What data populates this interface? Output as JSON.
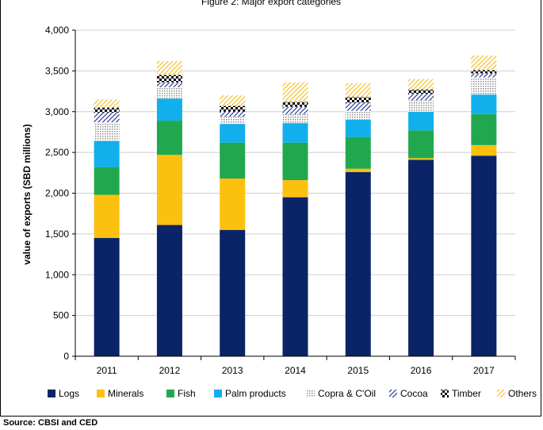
{
  "chart_data": {
    "type": "bar",
    "stacked": true,
    "title_partial": "Figure 2: Major export categories",
    "ylabel": "value of exports (SBD millions)",
    "xlabel": "",
    "categories": [
      "2011",
      "2012",
      "2013",
      "2014",
      "2015",
      "2016",
      "2017"
    ],
    "ylim": [
      0,
      4000
    ],
    "yticks": [
      0,
      500,
      1000,
      1500,
      2000,
      2500,
      3000,
      3500,
      4000
    ],
    "ytick_labels": [
      "0",
      "500",
      "1,000",
      "1,500",
      "2,000",
      "2,500",
      "3,000",
      "3,500",
      "4,000"
    ],
    "grid": "horizontal",
    "legend_position": "bottom",
    "series": [
      {
        "name": "Logs",
        "color": "#0b2467",
        "pattern": "solid",
        "values": [
          1450,
          1610,
          1550,
          1950,
          2260,
          2410,
          2460
        ]
      },
      {
        "name": "Minerals",
        "color": "#fcc00f",
        "pattern": "solid",
        "values": [
          530,
          860,
          630,
          210,
          40,
          20,
          130
        ]
      },
      {
        "name": "Fish",
        "color": "#21a84f",
        "pattern": "solid",
        "values": [
          340,
          420,
          440,
          460,
          390,
          340,
          380
        ]
      },
      {
        "name": "Palm products",
        "color": "#11b0ec",
        "pattern": "solid",
        "values": [
          320,
          270,
          230,
          240,
          210,
          230,
          240
        ]
      },
      {
        "name": "Copra & C'Oil",
        "color": "#a6a6a6",
        "pattern": "dots",
        "values": [
          230,
          140,
          90,
          110,
          110,
          140,
          210
        ]
      },
      {
        "name": "Cocoa",
        "color": "#1c2a8c",
        "pattern": "hatch",
        "values": [
          120,
          60,
          60,
          90,
          100,
          80,
          50
        ]
      },
      {
        "name": "Timber",
        "color": "#000000",
        "pattern": "checker",
        "values": [
          60,
          90,
          70,
          60,
          70,
          50,
          40
        ]
      },
      {
        "name": "Others",
        "color": "#f3c12a",
        "pattern": "hatch",
        "values": [
          100,
          170,
          130,
          240,
          170,
          130,
          180
        ]
      }
    ]
  },
  "source_text": "Source: CBSI and CED"
}
